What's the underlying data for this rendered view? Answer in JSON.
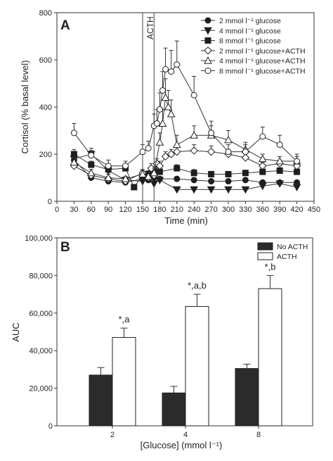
{
  "chart_data": [
    {
      "type": "line",
      "panel": "A",
      "xlabel": "Time (min)",
      "ylabel": "Cortisol (% basal level)",
      "xlim": [
        0,
        450
      ],
      "ylim": [
        0,
        800
      ],
      "xticks": [
        0,
        30,
        60,
        90,
        120,
        150,
        180,
        210,
        240,
        270,
        300,
        330,
        360,
        390,
        420,
        450
      ],
      "yticks": [
        0,
        200,
        400,
        600,
        800
      ],
      "acth_window": {
        "label": "ACTH",
        "start": 150,
        "end": 170
      },
      "legend_position": "top-right",
      "series": [
        {
          "name": "2 mmol l⁻¹ glucose",
          "marker": "circle",
          "fill": "filled",
          "x": [
            30,
            60,
            90,
            120,
            150,
            160,
            170,
            180,
            210,
            240,
            270,
            300,
            330,
            360,
            390,
            420
          ],
          "y": [
            175,
            100,
            85,
            80,
            95,
            90,
            100,
            95,
            95,
            90,
            85,
            85,
            90,
            80,
            80,
            80
          ],
          "err": [
            15,
            10,
            8,
            8,
            10,
            10,
            10,
            10,
            10,
            10,
            8,
            8,
            10,
            8,
            8,
            8
          ]
        },
        {
          "name": "4 mmol l⁻¹ glucose",
          "marker": "triangle-down",
          "fill": "filled",
          "x": [
            30,
            60,
            90,
            120,
            150,
            160,
            170,
            180,
            210,
            240,
            270,
            300,
            330,
            360,
            390,
            420
          ],
          "y": [
            180,
            200,
            130,
            90,
            85,
            100,
            75,
            90,
            50,
            50,
            50,
            50,
            50,
            65,
            75,
            60
          ],
          "err": [
            15,
            15,
            15,
            10,
            10,
            15,
            10,
            10,
            8,
            8,
            8,
            8,
            8,
            10,
            10,
            10
          ]
        },
        {
          "name": "8 mmol l⁻¹ glucose",
          "marker": "square",
          "fill": "filled",
          "x": [
            30,
            60,
            90,
            120,
            135,
            150,
            160,
            170,
            180,
            210,
            240,
            270,
            300,
            330,
            360,
            390,
            420
          ],
          "y": [
            200,
            155,
            135,
            140,
            60,
            110,
            115,
            130,
            125,
            140,
            120,
            115,
            115,
            120,
            125,
            130,
            125
          ],
          "err": [
            20,
            15,
            15,
            15,
            10,
            15,
            15,
            15,
            15,
            15,
            15,
            12,
            12,
            12,
            12,
            12,
            12
          ]
        },
        {
          "name": "2 mmol l⁻¹ glucose+ACTH",
          "marker": "diamond",
          "fill": "open",
          "x": [
            30,
            60,
            90,
            120,
            150,
            160,
            165,
            170,
            175,
            180,
            190,
            200,
            210,
            240,
            270,
            300,
            330,
            360,
            390,
            420
          ],
          "y": [
            150,
            110,
            95,
            85,
            120,
            100,
            140,
            110,
            160,
            150,
            190,
            200,
            210,
            215,
            210,
            200,
            185,
            150,
            160,
            150
          ],
          "err": [
            15,
            10,
            10,
            10,
            15,
            10,
            20,
            15,
            20,
            20,
            20,
            20,
            20,
            25,
            25,
            20,
            20,
            15,
            15,
            15
          ]
        },
        {
          "name": "4 mmol l⁻¹ glucose+ACTH",
          "marker": "triangle-up",
          "fill": "open",
          "x": [
            30,
            60,
            90,
            120,
            150,
            160,
            170,
            180,
            185,
            190,
            195,
            200,
            210,
            240,
            270,
            300,
            330,
            360,
            390,
            420
          ],
          "y": [
            165,
            120,
            100,
            95,
            115,
            105,
            120,
            250,
            330,
            440,
            400,
            370,
            240,
            280,
            280,
            260,
            220,
            180,
            170,
            170
          ],
          "err": [
            20,
            15,
            15,
            10,
            15,
            15,
            20,
            40,
            60,
            80,
            70,
            60,
            40,
            40,
            40,
            40,
            30,
            20,
            20,
            20
          ]
        },
        {
          "name": "8 mmol l⁻¹ glucose+ACTH",
          "marker": "circle",
          "fill": "open",
          "x": [
            30,
            60,
            90,
            120,
            150,
            160,
            170,
            175,
            180,
            185,
            190,
            200,
            210,
            240,
            270,
            300,
            330,
            360,
            390,
            420
          ],
          "y": [
            290,
            195,
            150,
            150,
            210,
            225,
            320,
            330,
            390,
            470,
            560,
            550,
            580,
            450,
            290,
            210,
            210,
            275,
            240,
            170
          ],
          "err": [
            40,
            30,
            25,
            20,
            30,
            30,
            50,
            60,
            70,
            80,
            90,
            90,
            100,
            80,
            50,
            30,
            30,
            40,
            40,
            30
          ]
        }
      ]
    },
    {
      "type": "bar",
      "panel": "B",
      "xlabel": "[Glucose] (mmol l⁻¹)",
      "ylabel": "AUC",
      "categories": [
        "2",
        "4",
        "8"
      ],
      "ylim": [
        0,
        100000
      ],
      "yticks": [
        "0",
        "20,000",
        "40,000",
        "60,000",
        "80,000",
        "100,000"
      ],
      "legend_position": "top-right",
      "series": [
        {
          "name": "No ACTH",
          "color": "#2b2b2b",
          "values": [
            27000,
            17500,
            30500
          ],
          "err": [
            4000,
            3500,
            2300
          ]
        },
        {
          "name": "ACTH",
          "color": "#ffffff",
          "values": [
            47000,
            63500,
            73000
          ],
          "err": [
            5000,
            6500,
            7000
          ]
        }
      ],
      "annotations": [
        "*,a",
        "*,a,b",
        "*,b"
      ]
    }
  ]
}
